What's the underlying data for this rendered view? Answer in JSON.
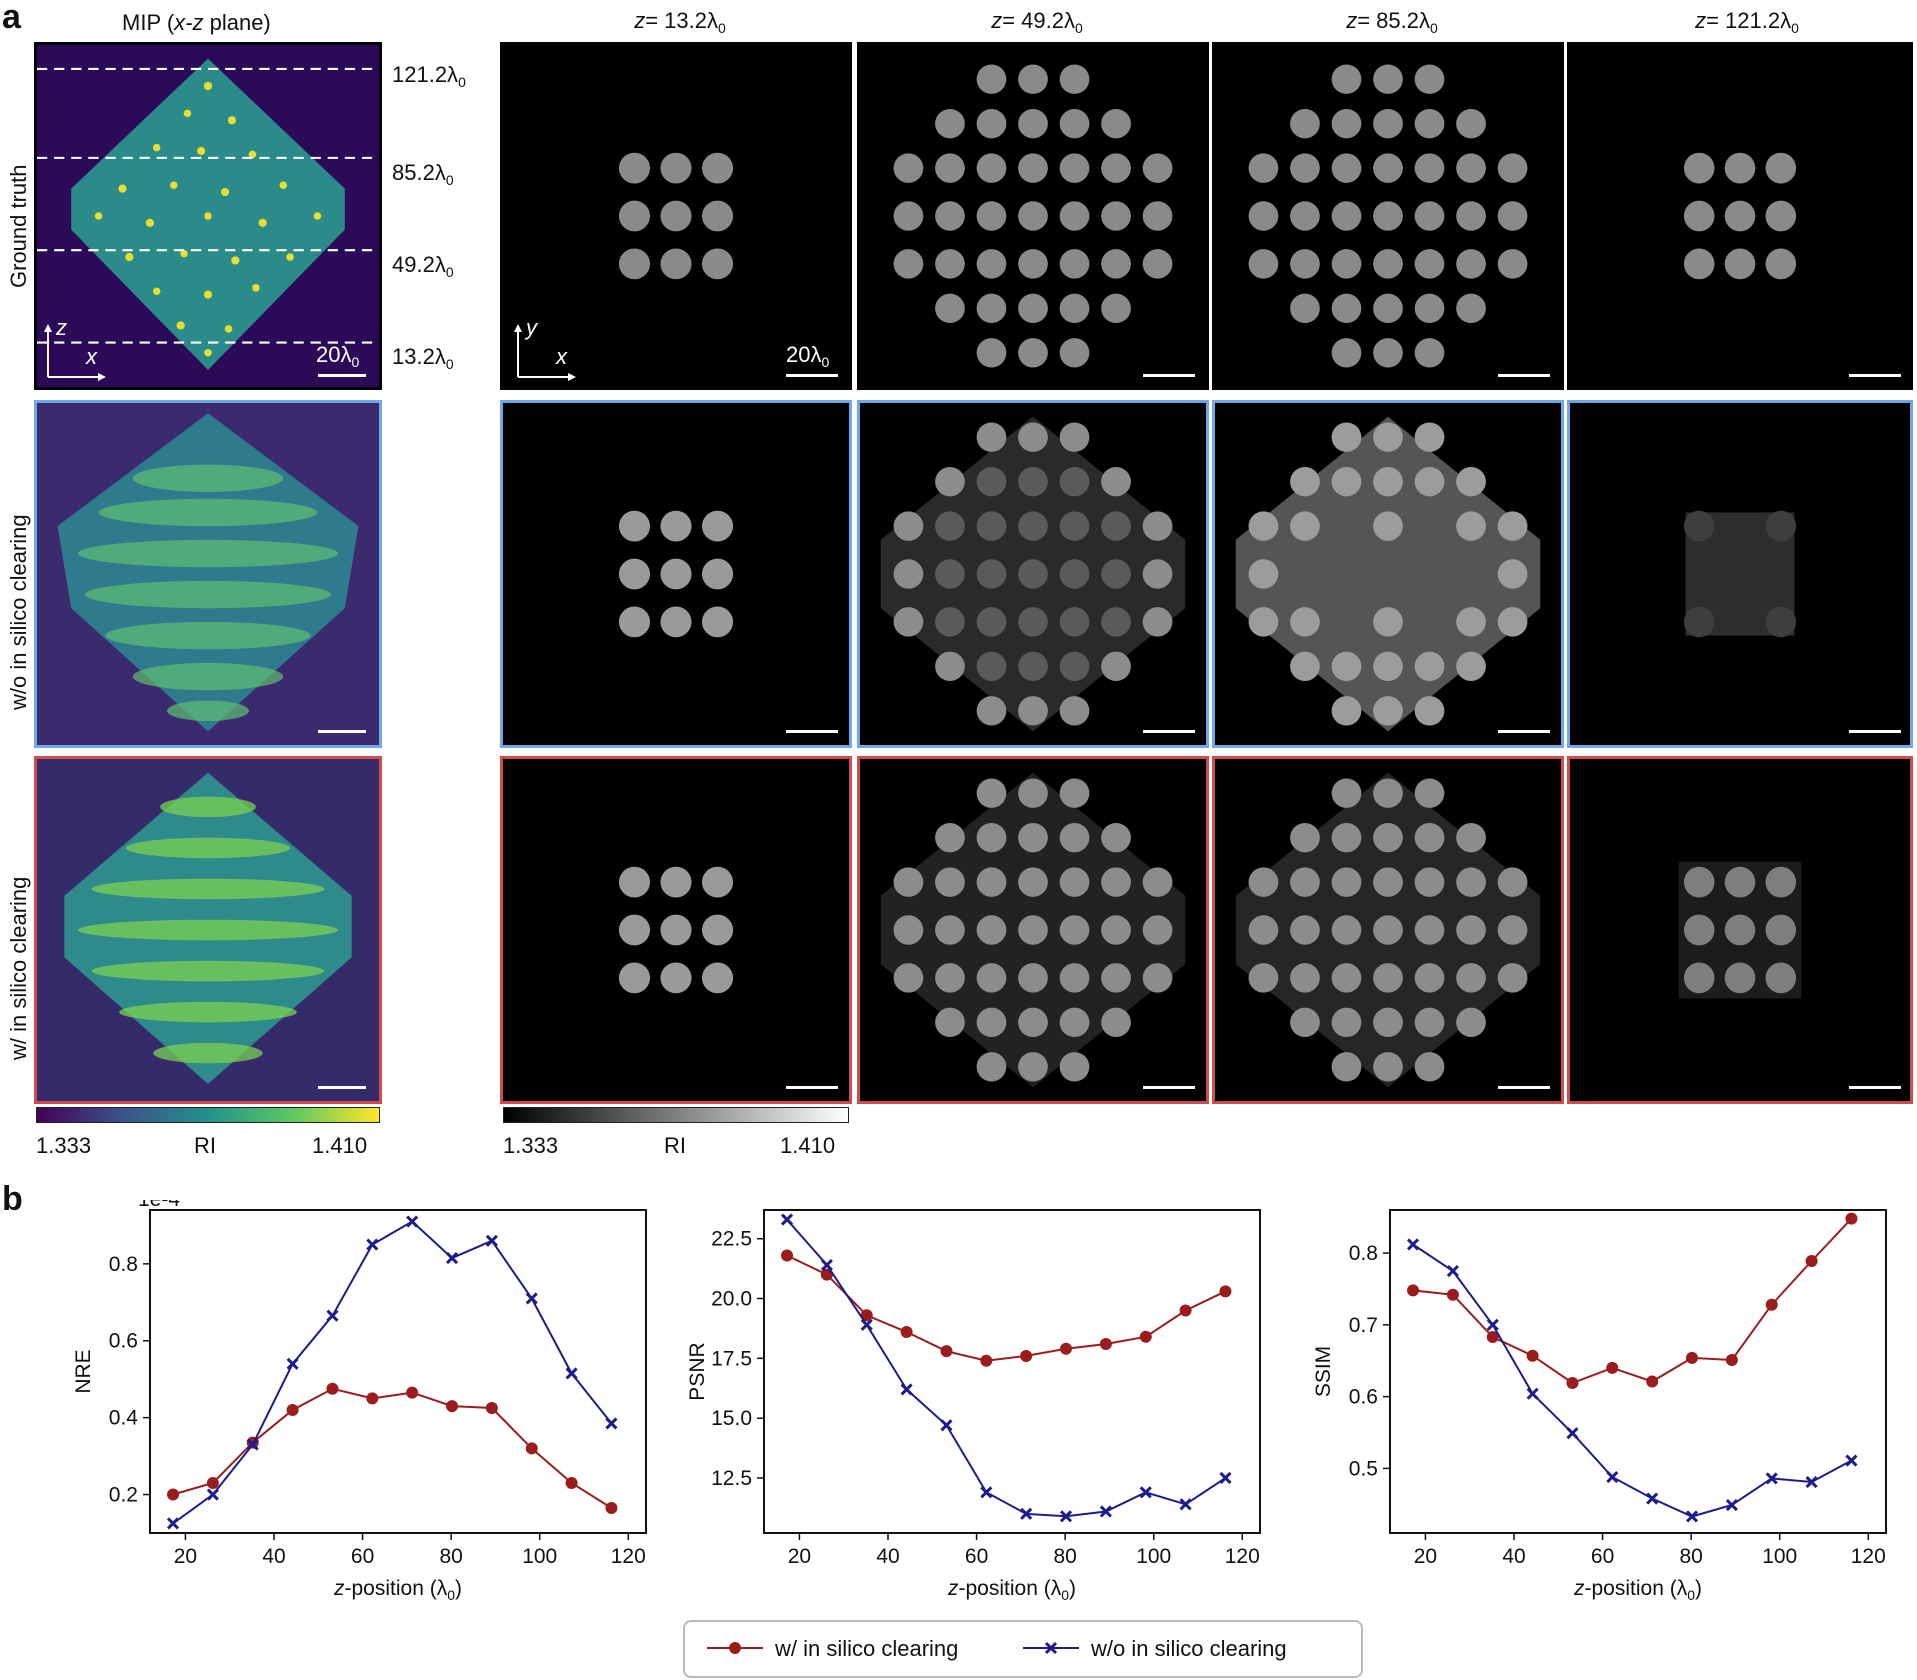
{
  "panel_a": {
    "letter": "a",
    "mip_title_pre": "MIP (",
    "mip_title_italic": "x-z",
    "mip_title_post": " plane)",
    "rows": [
      "Ground truth",
      "w/o in silico clearing",
      "w/ in silico clearing"
    ],
    "col_headers": [
      {
        "z": "z",
        "eq": "= 13.2λ",
        "sub": "0"
      },
      {
        "z": "z",
        "eq": "= 49.2λ",
        "sub": "0"
      },
      {
        "z": "z",
        "eq": "= 85.2λ",
        "sub": "0"
      },
      {
        "z": "z",
        "eq": "= 121.2λ",
        "sub": "0"
      }
    ],
    "z_markers": [
      {
        "main": "121.2λ",
        "sub": "0"
      },
      {
        "main": "85.2λ",
        "sub": "0"
      },
      {
        "main": "49.2λ",
        "sub": "0"
      },
      {
        "main": "13.2λ",
        "sub": "0"
      }
    ],
    "scale_label_main": "20λ",
    "scale_label_sub": "0",
    "mip_axes": {
      "vertical": "z",
      "horizontal": "x"
    },
    "slice_axes": {
      "vertical": "y",
      "horizontal": "x"
    },
    "colorbar_viridis": {
      "min": "1.333",
      "label": "RI",
      "max": "1.410"
    },
    "colorbar_gray": {
      "min": "1.333",
      "label": "RI",
      "max": "1.410"
    },
    "colors": {
      "blue_border": "#6fa8e8",
      "red_border": "#cf4d4d"
    }
  },
  "panel_b": {
    "letter": "b"
  },
  "chart_data": [
    {
      "type": "line",
      "name": "nre-chart",
      "ylabel": "NRE",
      "xlabel_pre": "z",
      "xlabel_post": "-position (λ",
      "xlabel_sub": "0",
      "xlabel_end": ")",
      "offset_label": "1e-4",
      "x": [
        17.2,
        26.2,
        35.2,
        44.2,
        53.2,
        62.2,
        71.2,
        80.2,
        89.2,
        98.2,
        107.2,
        116.2
      ],
      "xlim": [
        12,
        124
      ],
      "ylim": [
        0.1,
        0.94
      ],
      "xticks": [
        20,
        40,
        60,
        80,
        100,
        120
      ],
      "yticks": [
        0.2,
        0.4,
        0.6,
        0.8
      ],
      "ytick_labels": [
        "0.2",
        "0.4",
        "0.6",
        "0.8"
      ],
      "series": [
        {
          "name": "w/ in silico clearing",
          "color": "#9b1c1c",
          "marker": "circle",
          "values": [
            0.2,
            0.23,
            0.335,
            0.42,
            0.475,
            0.45,
            0.465,
            0.43,
            0.425,
            0.32,
            0.23,
            0.165
          ]
        },
        {
          "name": "w/o in silico clearing",
          "color": "#1c1c8c",
          "marker": "x",
          "values": [
            0.125,
            0.2,
            0.33,
            0.54,
            0.665,
            0.85,
            0.91,
            0.815,
            0.86,
            0.71,
            0.515,
            0.385
          ]
        }
      ]
    },
    {
      "type": "line",
      "name": "psnr-chart",
      "ylabel": "PSNR",
      "xlabel_pre": "z",
      "xlabel_post": "-position (λ",
      "xlabel_sub": "0",
      "xlabel_end": ")",
      "offset_label": "",
      "x": [
        17.2,
        26.2,
        35.2,
        44.2,
        53.2,
        62.2,
        71.2,
        80.2,
        89.2,
        98.2,
        107.2,
        116.2
      ],
      "xlim": [
        12,
        124
      ],
      "ylim": [
        10.2,
        23.7
      ],
      "xticks": [
        20,
        40,
        60,
        80,
        100,
        120
      ],
      "yticks": [
        12.5,
        15.0,
        17.5,
        20.0,
        22.5
      ],
      "ytick_labels": [
        "12.5",
        "15.0",
        "17.5",
        "20.0",
        "22.5"
      ],
      "series": [
        {
          "name": "w/ in silico clearing",
          "color": "#9b1c1c",
          "marker": "circle",
          "values": [
            21.8,
            21.0,
            19.3,
            18.6,
            17.8,
            17.4,
            17.6,
            17.9,
            18.1,
            18.4,
            19.5,
            20.3
          ]
        },
        {
          "name": "w/o in silico clearing",
          "color": "#1c1c8c",
          "marker": "x",
          "values": [
            23.3,
            21.4,
            18.9,
            16.2,
            14.7,
            11.9,
            11.0,
            10.9,
            11.1,
            11.9,
            11.4,
            12.5
          ]
        }
      ]
    },
    {
      "type": "line",
      "name": "ssim-chart",
      "ylabel": "SSIM",
      "xlabel_pre": "z",
      "xlabel_post": "-position (λ",
      "xlabel_sub": "0",
      "xlabel_end": ")",
      "offset_label": "",
      "x": [
        17.2,
        26.2,
        35.2,
        44.2,
        53.2,
        62.2,
        71.2,
        80.2,
        89.2,
        98.2,
        107.2,
        116.2
      ],
      "xlim": [
        12,
        124
      ],
      "ylim": [
        0.41,
        0.86
      ],
      "xticks": [
        20,
        40,
        60,
        80,
        100,
        120
      ],
      "yticks": [
        0.5,
        0.6,
        0.7,
        0.8
      ],
      "ytick_labels": [
        "0.5",
        "0.6",
        "0.7",
        "0.8"
      ],
      "series": [
        {
          "name": "w/ in silico clearing",
          "color": "#9b1c1c",
          "marker": "circle",
          "values": [
            0.748,
            0.742,
            0.683,
            0.657,
            0.619,
            0.64,
            0.621,
            0.654,
            0.651,
            0.728,
            0.789,
            0.848
          ]
        },
        {
          "name": "w/o in silico clearing",
          "color": "#1c1c8c",
          "marker": "x",
          "values": [
            0.812,
            0.775,
            0.7,
            0.604,
            0.549,
            0.488,
            0.458,
            0.433,
            0.449,
            0.486,
            0.481,
            0.511
          ]
        }
      ]
    }
  ],
  "legend": {
    "with_label": "w/ in silico clearing",
    "without_label": "w/o in silico clearing"
  }
}
